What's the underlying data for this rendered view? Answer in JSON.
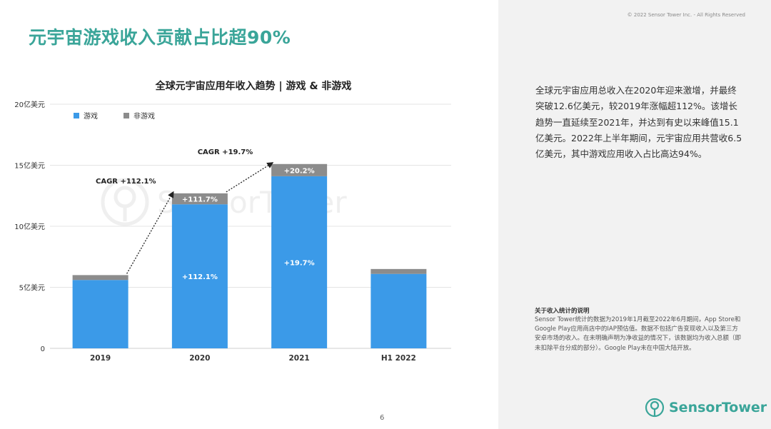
{
  "copyright": "© 2022 Sensor Tower Inc. - All Rights Reserved",
  "page_title": "元宇宙游戏收入贡献占比超90%",
  "summary": "全球元宇宙应用总收入在2020年迎来激增，并最终突破12.6亿美元，较2019年涨幅超112%。该增长趋势一直延续至2021年，并达到有史以来峰值15.1亿美元。2022年上半年期间，元宇宙应用共营收6.5亿美元，其中游戏应用收入占比高达94%。",
  "note": {
    "title": "关于收入统计的说明",
    "text": "Sensor Tower统计的数据为2019年1月截至2022年6月期间，App Store和Google Play应用商店中的IAP预估值。数据不包括广告变现收入以及第三方安卓市场的收入。在未明确声明为净收益的情况下，该数据均为收入总额（即未扣除平台分成的部分）。Google Play未在中国大陆开放。"
  },
  "page_number": "6",
  "logo_text": "SensorTower",
  "watermark_text": "SensorTower",
  "chart_data": {
    "type": "bar",
    "stacked": true,
    "title": "全球元宇宙应用年收入趋势 | 游戏 & 非游戏",
    "categories": [
      "2019",
      "2020",
      "2021",
      "H1 2022"
    ],
    "series": [
      {
        "name": "游戏",
        "color": "#3b9ae8",
        "values": [
          5.6,
          11.8,
          14.1,
          6.1
        ]
      },
      {
        "name": "非游戏",
        "color": "#8c8c8c",
        "values": [
          0.4,
          0.9,
          1.0,
          0.4
        ]
      }
    ],
    "y_ticks": [
      {
        "value": 0,
        "label": "0"
      },
      {
        "value": 5,
        "label": "5亿美元"
      },
      {
        "value": 10,
        "label": "10亿美元"
      },
      {
        "value": 15,
        "label": "15亿美元"
      },
      {
        "value": 20,
        "label": "20亿美元"
      }
    ],
    "ylim": [
      0,
      20
    ],
    "grid": true,
    "legend_position": "top-left",
    "bar_labels": [
      {
        "category": "2020",
        "series": "游戏",
        "text": "+112.1%"
      },
      {
        "category": "2020",
        "series": "非游戏",
        "text": "+111.7%"
      },
      {
        "category": "2021",
        "series": "游戏",
        "text": "+19.7%"
      },
      {
        "category": "2021",
        "series": "非游戏",
        "text": "+20.2%"
      }
    ],
    "annotations": [
      {
        "text": "CAGR +112.1%",
        "from": "2019",
        "to": "2020"
      },
      {
        "text": "CAGR +19.7%",
        "from": "2020",
        "to": "2021"
      }
    ]
  }
}
